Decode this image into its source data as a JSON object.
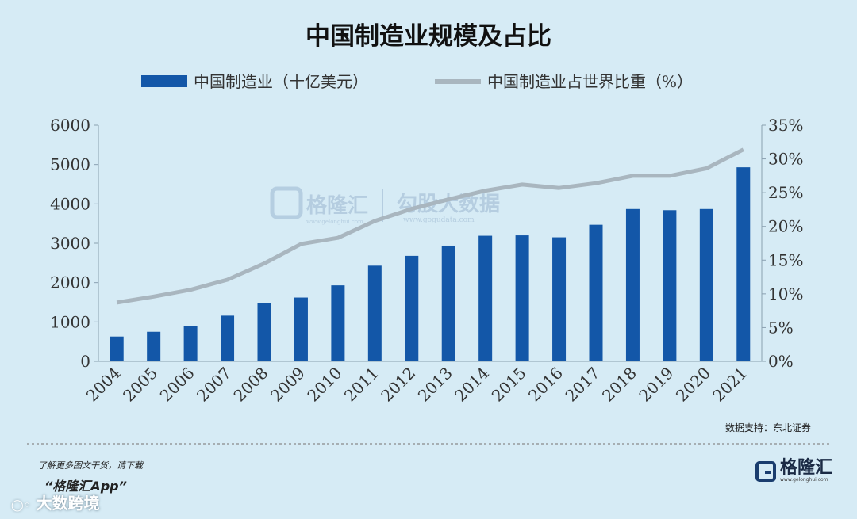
{
  "chart_data": {
    "type": "bar",
    "title": "中国制造业规模及占比",
    "categories": [
      "2004",
      "2005",
      "2006",
      "2007",
      "2008",
      "2009",
      "2010",
      "2011",
      "2012",
      "2013",
      "2014",
      "2015",
      "2016",
      "2017",
      "2018",
      "2019",
      "2020",
      "2021"
    ],
    "series": [
      {
        "name": "中国制造业（十亿美元）",
        "type": "bar",
        "axis": "left",
        "color": "#1357a8",
        "values": [
          630,
          750,
          900,
          1160,
          1480,
          1620,
          1930,
          2430,
          2680,
          2940,
          3190,
          3200,
          3150,
          3470,
          3870,
          3840,
          3870,
          4930
        ]
      },
      {
        "name": "中国制造业占世界比重（%）",
        "type": "line",
        "axis": "right",
        "color": "#a9b6bf",
        "values": [
          8.7,
          9.6,
          10.6,
          12.1,
          14.5,
          17.4,
          18.3,
          20.8,
          22.6,
          24.0,
          25.3,
          26.2,
          25.7,
          26.4,
          27.5,
          27.5,
          28.6,
          31.4
        ]
      }
    ],
    "yleft_lim": [
      0,
      6000
    ],
    "yleft_ticks": [
      "0",
      "1000",
      "2000",
      "3000",
      "4000",
      "5000",
      "6000"
    ],
    "yright_lim": [
      0,
      35
    ],
    "yright_ticks": [
      "0%",
      "5%",
      "10%",
      "15%",
      "20%",
      "25%",
      "30%",
      "35%"
    ],
    "legend_position": "top",
    "grid": false
  },
  "source": "数据支持：东北证券",
  "footer": {
    "line1": "了解更多图文干货，请下载",
    "line2": "“格隆汇App”",
    "brand": "格隆汇",
    "brand_small": "www.gelonghui.com",
    "corner": "大数跨境"
  },
  "watermark": {
    "brand": "格隆汇",
    "brand_small": "www.gelonghui.com",
    "text": "勾股大数据",
    "small": "www.gogudata.com"
  }
}
